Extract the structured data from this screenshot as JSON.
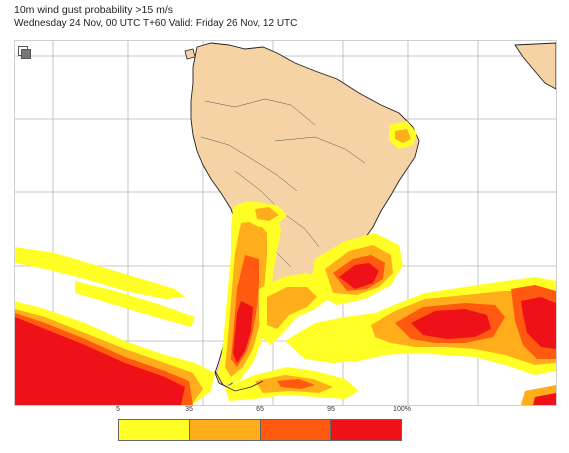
{
  "header": {
    "title": "10m wind gust probability >15 m/s",
    "subtitle": "Wednesday 24 Nov, 00 UTC T+60 Valid: Friday 26 Nov, 12 UTC"
  },
  "toolbar": {
    "frame_icon": "expand-icon"
  },
  "colors": {
    "land": "#f6d3a4",
    "ocean": "#ffffff",
    "coast": "#222222",
    "grid": "#b5b5b5",
    "level_5_35": "#ffff26",
    "level_35_65": "#ffad1a",
    "level_65_95": "#ff5a0f",
    "level_95_100": "#ee1118"
  },
  "legend": {
    "ticks": [
      "5",
      "35",
      "65",
      "95",
      "100%"
    ],
    "swatches": [
      {
        "range": "5-35",
        "color": "#ffff26"
      },
      {
        "range": "35-65",
        "color": "#ffad1a"
      },
      {
        "range": "65-95",
        "color": "#ff5a0f"
      },
      {
        "range": "95-100",
        "color": "#ee1118"
      }
    ]
  }
}
